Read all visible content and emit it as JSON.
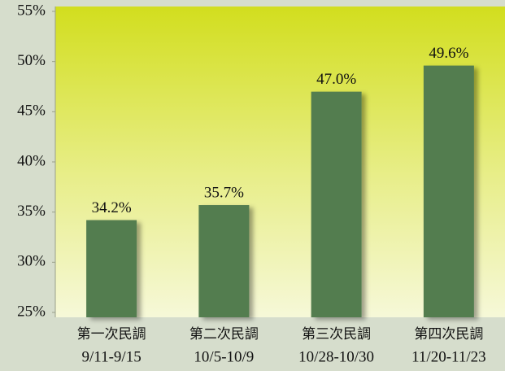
{
  "chart_data": {
    "type": "bar",
    "categories": [
      "第一次民調",
      "第二次民調",
      "第三次民調",
      "第四次民調"
    ],
    "periods": [
      "9/11-9/15",
      "10/5-10/9",
      "10/28-10/30",
      "11/20-11/23"
    ],
    "values": [
      34.2,
      35.7,
      47.0,
      49.6
    ],
    "value_labels": [
      "34.2%",
      "35.7%",
      "47.0%",
      "49.6%"
    ],
    "color": "#527d4f",
    "ylim": [
      25,
      55
    ],
    "yticks": [
      {
        "value": 25,
        "label": "25%"
      },
      {
        "value": 30,
        "label": "30%"
      },
      {
        "value": 35,
        "label": "35%"
      },
      {
        "value": 40,
        "label": "40%"
      },
      {
        "value": 45,
        "label": "45%"
      },
      {
        "value": 50,
        "label": "50%"
      },
      {
        "value": 55,
        "label": "55%"
      }
    ]
  }
}
